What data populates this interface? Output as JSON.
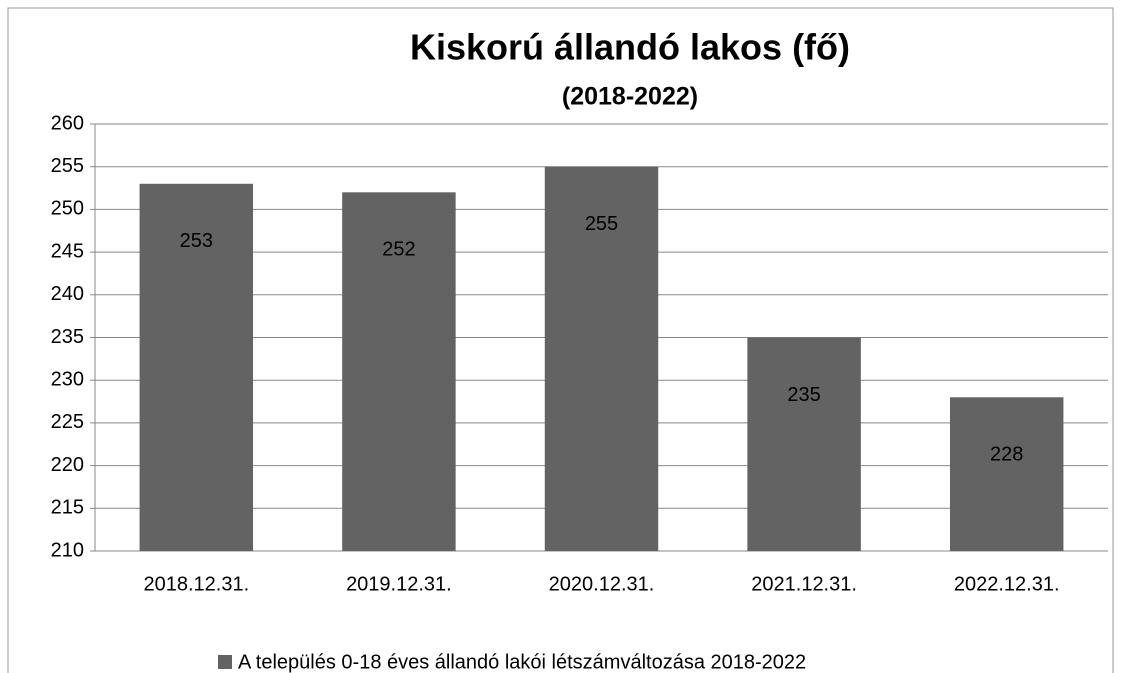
{
  "chart_data": {
    "type": "bar",
    "title": "Kiskorú állandó lakos (fő)",
    "subtitle": "(2018-2022)",
    "categories": [
      "2018.12.31.",
      "2019.12.31.",
      "2020.12.31.",
      "2021.12.31.",
      "2022.12.31."
    ],
    "series": [
      {
        "name": "A település 0-18 éves állandó lakói létszámváltozása 2018-2022",
        "color": "#636363",
        "values": [
          253,
          252,
          255,
          235,
          228
        ]
      }
    ],
    "ylim": [
      210,
      260
    ],
    "yticks": [
      210,
      215,
      220,
      225,
      230,
      235,
      240,
      245,
      250,
      255,
      260
    ],
    "grid": true,
    "legend": "bottom"
  }
}
